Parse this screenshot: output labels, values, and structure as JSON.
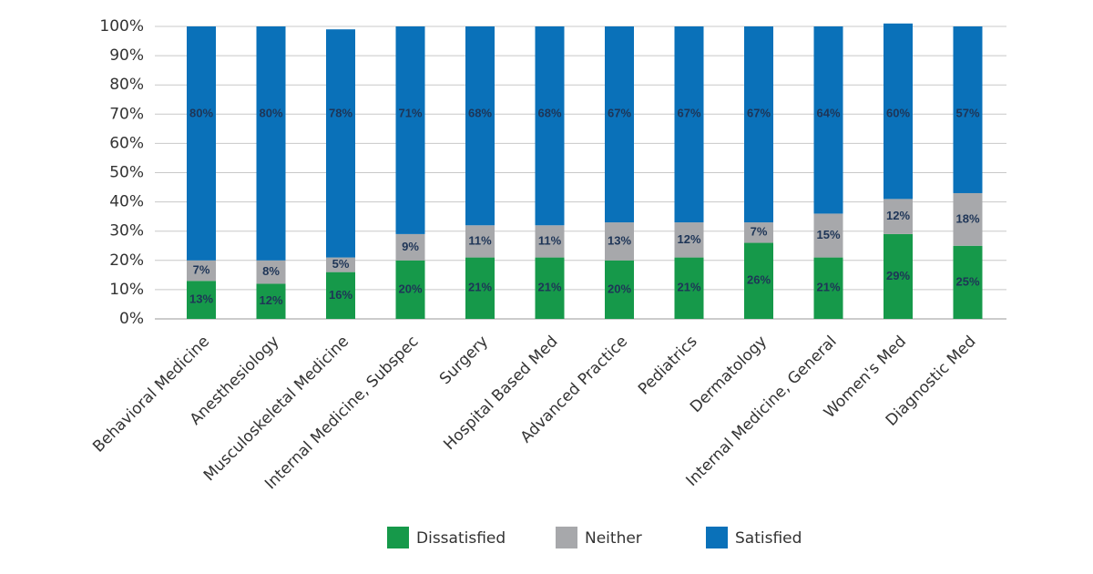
{
  "chart_data": {
    "type": "stacked_bar",
    "categories": [
      "Behavioral Medicine",
      "Anesthesiology",
      "Musculoskeletal Medicine",
      "Internal Medicine, Subspec",
      "Surgery",
      "Hospital Based Med",
      "Advanced Practice",
      "Pediatrics",
      "Dermatology",
      "Internal Medicine, General",
      "Women's Med",
      "Diagnostic Med"
    ],
    "series": [
      {
        "name": "Dissatisfied",
        "color": "#16994a",
        "values": [
          13,
          12,
          16,
          20,
          21,
          21,
          20,
          21,
          26,
          21,
          29,
          25
        ],
        "value_labels": [
          "13%",
          "12%",
          "16%",
          "20%",
          "21%",
          "21%",
          "20%",
          "21%",
          "26%",
          "21%",
          "29%",
          "25%"
        ]
      },
      {
        "name": "Neither",
        "color": "#a7a8ab",
        "values": [
          7,
          8,
          5,
          9,
          11,
          11,
          13,
          12,
          7,
          15,
          12,
          18
        ],
        "value_labels": [
          "7%",
          "8%",
          "5%",
          "9%",
          "11%",
          "11%",
          "13%",
          "12%",
          "7%",
          "15%",
          "12%",
          "18%"
        ]
      },
      {
        "name": "Satisfied",
        "color": "#0a71b9",
        "values": [
          80,
          80,
          78,
          71,
          68,
          68,
          67,
          67,
          67,
          64,
          60,
          57
        ],
        "value_labels": [
          "80%",
          "80%",
          "78%",
          "71%",
          "68%",
          "68%",
          "67%",
          "67%",
          "67%",
          "64%",
          "60%",
          "57%"
        ]
      }
    ],
    "ylim": [
      0,
      100
    ],
    "yticks": [
      {
        "value": 0,
        "label": "0%"
      },
      {
        "value": 10,
        "label": "10%"
      },
      {
        "value": 20,
        "label": "20%"
      },
      {
        "value": 30,
        "label": "30%"
      },
      {
        "value": 40,
        "label": "40%"
      },
      {
        "value": 50,
        "label": "50%"
      },
      {
        "value": 60,
        "label": "60%"
      },
      {
        "value": 70,
        "label": "70%"
      },
      {
        "value": 80,
        "label": "80%"
      },
      {
        "value": 90,
        "label": "90%"
      },
      {
        "value": 100,
        "label": "100%"
      }
    ],
    "grid": true
  }
}
